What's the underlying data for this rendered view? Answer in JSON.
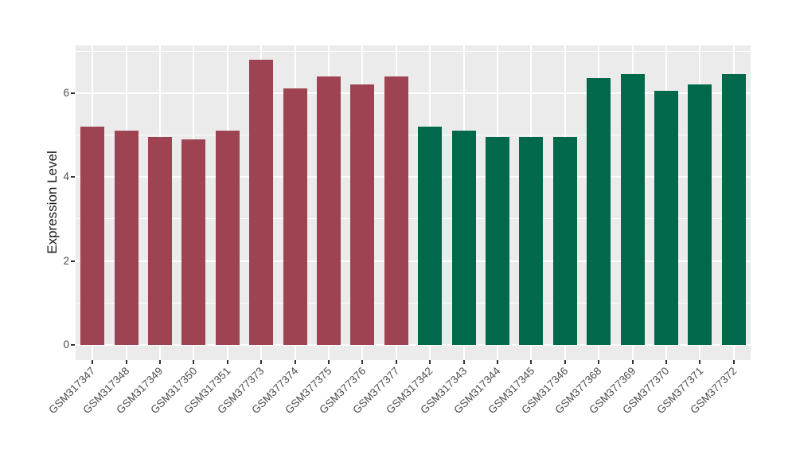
{
  "chart_data": {
    "type": "bar",
    "title": "",
    "xlabel": "",
    "ylabel": "Expression Level",
    "categories": [
      "GSM317347",
      "GSM317348",
      "GSM317349",
      "GSM317350",
      "GSM317351",
      "GSM377373",
      "GSM377374",
      "GSM377375",
      "GSM377376",
      "GSM377377",
      "GSM317342",
      "GSM317343",
      "GSM317344",
      "GSM317345",
      "GSM317346",
      "GSM377368",
      "GSM377369",
      "GSM377370",
      "GSM377371",
      "GSM377372"
    ],
    "values": [
      5.2,
      5.1,
      4.95,
      4.9,
      5.1,
      6.8,
      6.1,
      6.4,
      6.2,
      6.4,
      5.2,
      5.1,
      4.95,
      4.95,
      4.95,
      6.35,
      6.45,
      6.05,
      6.2,
      6.45
    ],
    "color_group": [
      0,
      0,
      0,
      0,
      0,
      0,
      0,
      0,
      0,
      0,
      1,
      1,
      1,
      1,
      1,
      1,
      1,
      1,
      1,
      1
    ],
    "group_colors": [
      "#9E4352",
      "#01694B"
    ],
    "ylim": [
      0,
      7.13
    ],
    "yticks": [
      0,
      2,
      4,
      6
    ],
    "ytick_labels": [
      "0",
      "2",
      "4",
      "6"
    ],
    "minor_yticks": [
      1,
      3,
      5,
      7
    ],
    "grid": true,
    "legend": "none",
    "panel_bg": "#EBEBEB",
    "grid_color": "#FFFFFF",
    "tick_color": "#333333",
    "axis_text_color": "#4d4d4d"
  }
}
